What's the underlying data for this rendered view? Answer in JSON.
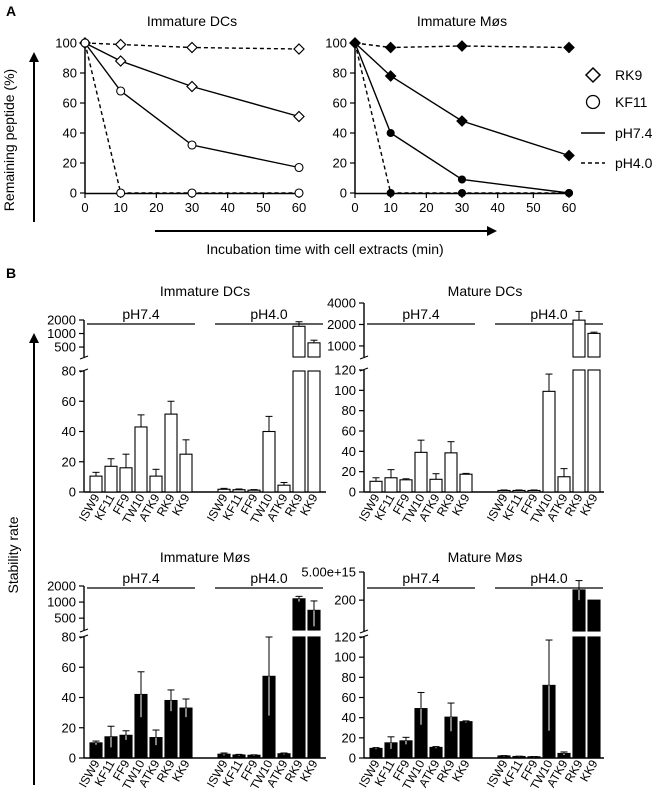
{
  "panels": [
    {
      "letter": "A"
    },
    {
      "letter": "B"
    }
  ],
  "panelA": {
    "ylabel": "Remaining peptide (%)",
    "xlabel": "Incubation time with cell extracts (min)",
    "legend": {
      "rk9": "RK9",
      "kf11": "KF11",
      "ph74": "pH7.4",
      "ph40": "pH4.0"
    }
  },
  "panelB": {
    "ylabel": "Stability rate"
  },
  "chart_data": [
    {
      "type": "line",
      "title": "Immature DCs",
      "xlabel": "Incubation time with cell extracts (min)",
      "ylabel": "Remaining peptide (%)",
      "x_ticks": [
        0,
        10,
        20,
        30,
        40,
        50,
        60
      ],
      "y_ticks": [
        0,
        20,
        40,
        60,
        80,
        100
      ],
      "xlim": [
        0,
        60
      ],
      "ylim": [
        0,
        100
      ],
      "marker_fill": "white",
      "series": [
        {
          "name": "RK9 pH7.4",
          "marker": "diamond",
          "dash": "solid",
          "x": [
            0,
            10,
            30,
            60
          ],
          "y": [
            100,
            88,
            71,
            51
          ]
        },
        {
          "name": "RK9 pH4.0",
          "marker": "diamond",
          "dash": "dashed",
          "x": [
            0,
            10,
            30,
            60
          ],
          "y": [
            100,
            99,
            97,
            96
          ]
        },
        {
          "name": "KF11 pH7.4",
          "marker": "circle",
          "dash": "solid",
          "x": [
            0,
            10,
            30,
            60
          ],
          "y": [
            100,
            68,
            32,
            17
          ]
        },
        {
          "name": "KF11 pH4.0",
          "marker": "circle",
          "dash": "dashed",
          "x": [
            0,
            10,
            30,
            60
          ],
          "y": [
            100,
            0,
            0,
            0
          ]
        }
      ]
    },
    {
      "type": "line",
      "title": "Immature Møs",
      "xlabel": "Incubation time with cell extracts (min)",
      "ylabel": "Remaining peptide (%)",
      "x_ticks": [
        0,
        10,
        20,
        30,
        40,
        50,
        60
      ],
      "y_ticks": [
        0,
        20,
        40,
        60,
        80,
        100
      ],
      "xlim": [
        0,
        60
      ],
      "ylim": [
        0,
        100
      ],
      "marker_fill": "black",
      "series": [
        {
          "name": "RK9 pH7.4",
          "marker": "diamond",
          "dash": "solid",
          "x": [
            0,
            10,
            30,
            60
          ],
          "y": [
            100,
            78,
            48,
            25
          ]
        },
        {
          "name": "RK9 pH4.0",
          "marker": "diamond",
          "dash": "dashed",
          "x": [
            0,
            10,
            30,
            60
          ],
          "y": [
            100,
            97,
            98,
            97
          ]
        },
        {
          "name": "KF11 pH7.4",
          "marker": "circle",
          "dash": "solid",
          "x": [
            0,
            10,
            30,
            60
          ],
          "y": [
            100,
            40,
            9,
            0
          ]
        },
        {
          "name": "KF11 pH4.0",
          "marker": "circle",
          "dash": "dashed",
          "x": [
            0,
            10,
            30,
            60
          ],
          "y": [
            100,
            0,
            0,
            0
          ]
        }
      ]
    },
    {
      "type": "bar",
      "title": "Immature DCs",
      "fill": "white",
      "groups": [
        "pH7.4",
        "pH4.0"
      ],
      "categories": [
        "ISW9",
        "KF11",
        "FF9",
        "TW10",
        "ATK9",
        "RK9",
        "KK9"
      ],
      "lower_axis_ticks": [
        0,
        20,
        40,
        60,
        80
      ],
      "upper_axis_ticks": [
        500,
        1000,
        2000
      ],
      "upper_axis_range": [
        300,
        2000
      ],
      "series": [
        {
          "name": "pH7.4",
          "values": [
            10.5,
            17,
            16,
            43,
            10.5,
            51.5,
            25
          ],
          "errors": [
            2.5,
            5,
            9,
            8,
            4.5,
            8.5,
            9.5
          ]
        },
        {
          "name": "pH4.0",
          "values": [
            1.8,
            1.5,
            1.2,
            40,
            4.5,
            1450,
            620
          ],
          "errors": [
            0.6,
            0.5,
            0.4,
            10,
            1.8,
            380,
            90
          ]
        }
      ]
    },
    {
      "type": "bar",
      "title": "Mature DCs",
      "fill": "white",
      "groups": [
        "pH7.4",
        "pH4.0"
      ],
      "categories": [
        "ISW9",
        "KF11",
        "FF9",
        "TW10",
        "ATK9",
        "RK9",
        "KK9"
      ],
      "lower_axis_ticks": [
        0,
        20,
        40,
        60,
        80,
        100,
        120
      ],
      "upper_axis_ticks": [
        1000,
        2000,
        4000
      ],
      "upper_axis_range": [
        700,
        4000
      ],
      "series": [
        {
          "name": "pH7.4",
          "values": [
            10.5,
            14,
            12,
            39,
            12.5,
            38.5,
            17.5
          ],
          "errors": [
            3.5,
            8,
            1,
            12,
            5.5,
            11,
            0.8
          ]
        },
        {
          "name": "pH4.0",
          "values": [
            1.5,
            1.5,
            1.5,
            99,
            15,
            2300,
            1500
          ],
          "errors": [
            0.5,
            0.5,
            0.5,
            17,
            8,
            750,
            60
          ]
        }
      ]
    },
    {
      "type": "bar",
      "title": "Immature Møs",
      "fill": "black",
      "groups": [
        "pH7.4",
        "pH4.0"
      ],
      "categories": [
        "ISW9",
        "KF11",
        "FF9",
        "TW10",
        "ATK9",
        "RK9",
        "KK9"
      ],
      "lower_axis_ticks": [
        0,
        20,
        40,
        60,
        80
      ],
      "upper_axis_ticks": [
        500,
        1000,
        2000
      ],
      "upper_axis_range": [
        300,
        2000
      ],
      "series": [
        {
          "name": "pH7.4",
          "values": [
            10,
            14,
            15,
            42,
            13.5,
            38,
            33
          ],
          "errors": [
            1.2,
            7,
            3,
            15,
            5,
            7,
            6
          ]
        },
        {
          "name": "pH4.0",
          "values": [
            2.5,
            2,
            1.8,
            54,
            2.8,
            1150,
            700
          ],
          "errors": [
            0.8,
            0.4,
            0.3,
            26,
            0.5,
            130,
            350
          ]
        }
      ]
    },
    {
      "type": "bar",
      "title": "Mature Møs",
      "fill": "black",
      "groups": [
        "pH7.4",
        "pH4.0"
      ],
      "categories": [
        "ISW9",
        "KF11",
        "FF9",
        "TW10",
        "ATK9",
        "RK9",
        "KK9"
      ],
      "lower_axis_ticks": [
        0,
        20,
        40,
        60,
        80,
        100,
        120
      ],
      "upper_axis_ticks": [
        200
      ],
      "upper_axis_top_label": "5.00e+15",
      "upper_axis_range": [
        150,
        260
      ],
      "series": [
        {
          "name": "pH7.4",
          "values": [
            9.5,
            15,
            17,
            49,
            10.5,
            40.5,
            36
          ],
          "errors": [
            0.8,
            6,
            3.5,
            16,
            0.8,
            14,
            0.8
          ]
        },
        {
          "name": "pH4.0",
          "values": [
            2,
            1.5,
            1.2,
            72,
            4.5,
            220,
            200
          ],
          "errors": [
            0.4,
            0.3,
            0.3,
            45,
            1.5,
            20,
            0
          ]
        }
      ]
    }
  ]
}
